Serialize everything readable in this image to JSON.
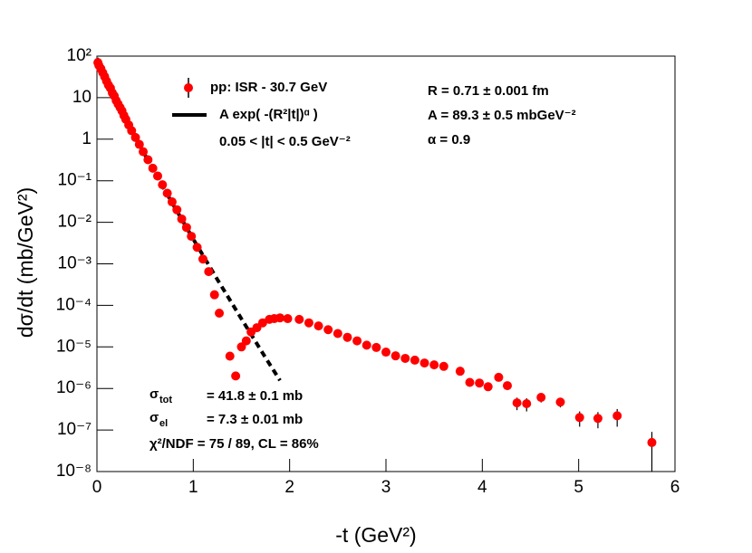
{
  "chart_data": {
    "type": "scatter",
    "xlabel": "-t (GeV²)",
    "ylabel": "dσ/dt (mb/GeV²)",
    "xlim": [
      0,
      6
    ],
    "xticks": [
      0,
      1,
      2,
      3,
      4,
      5,
      6
    ],
    "ylim": [
      1e-08,
      100
    ],
    "yscale": "log",
    "yticks": [
      {
        "value": 1e-08,
        "label": "10⁻⁸"
      },
      {
        "value": 1e-07,
        "label": "10⁻⁷"
      },
      {
        "value": 1e-06,
        "label": "10⁻⁶"
      },
      {
        "value": 1e-05,
        "label": "10⁻⁵"
      },
      {
        "value": 0.0001,
        "label": "10⁻⁴"
      },
      {
        "value": 0.001,
        "label": "10⁻³"
      },
      {
        "value": 0.01,
        "label": "10⁻²"
      },
      {
        "value": 0.1,
        "label": "10⁻¹"
      },
      1,
      10,
      {
        "value": 100,
        "label": "10²"
      }
    ],
    "series": [
      {
        "name": "pp: ISR - 30.7 GeV",
        "color": "#ff0000",
        "x": [
          0.01,
          0.02,
          0.04,
          0.06,
          0.08,
          0.1,
          0.12,
          0.14,
          0.16,
          0.18,
          0.2,
          0.22,
          0.24,
          0.26,
          0.28,
          0.3,
          0.33,
          0.36,
          0.4,
          0.44,
          0.48,
          0.53,
          0.58,
          0.63,
          0.68,
          0.73,
          0.78,
          0.83,
          0.88,
          0.93,
          0.98,
          1.04,
          1.1,
          1.16,
          1.22,
          1.27,
          1.38,
          1.44,
          1.5,
          1.55,
          1.6,
          1.66,
          1.72,
          1.79,
          1.84,
          1.9,
          1.98,
          2.1,
          2.2,
          2.3,
          2.4,
          2.5,
          2.6,
          2.7,
          2.8,
          2.9,
          3.0,
          3.1,
          3.2,
          3.3,
          3.4,
          3.5,
          3.6,
          3.77,
          3.87,
          3.97,
          4.06,
          4.17,
          4.26,
          4.36,
          4.46,
          4.61,
          4.81,
          5.01,
          5.2,
          5.4,
          5.76
        ],
        "values": [
          70,
          60,
          50,
          40,
          32,
          25,
          20,
          17,
          13,
          11,
          8.5,
          7,
          5.8,
          4.8,
          3.7,
          3.0,
          2.2,
          1.6,
          1.1,
          0.75,
          0.5,
          0.32,
          0.2,
          0.13,
          0.08,
          0.05,
          0.031,
          0.02,
          0.012,
          0.0075,
          0.0046,
          0.0025,
          0.0013,
          0.00065,
          0.00018,
          6.5e-05,
          6e-06,
          2e-06,
          1e-05,
          1.4e-05,
          2.3e-05,
          2.9e-05,
          3.8e-05,
          4.6e-05,
          4.8e-05,
          5e-05,
          4.8e-05,
          4.6e-05,
          3.8e-05,
          3.2e-05,
          2.6e-05,
          2.1e-05,
          1.7e-05,
          1.4e-05,
          1.1e-05,
          9.7e-06,
          7.5e-06,
          6.1e-06,
          5.3e-06,
          4.8e-06,
          4.1e-06,
          3.7e-06,
          3.4e-06,
          2.6e-06,
          1.4e-06,
          1.35e-06,
          1.1e-06,
          1.85e-06,
          1.17e-06,
          4.5e-07,
          4.3e-07,
          6.1e-07,
          4.7e-07,
          2e-07,
          1.9e-07,
          2.2e-07,
          5e-08
        ],
        "errors": [
          2,
          2,
          1.5,
          1.2,
          1,
          0.8,
          0.6,
          0.5,
          0.4,
          0.3,
          0.25,
          0.2,
          0.17,
          0.14,
          0.11,
          0.09,
          0.07,
          0.05,
          0.03,
          0.02,
          0.015,
          0.01,
          0.006,
          0.004,
          0.0024,
          0.0015,
          0.0009,
          0.0006,
          0.0004,
          0.0002,
          0.00014,
          8e-05,
          4e-05,
          2e-05,
          6e-06,
          2e-06,
          4e-07,
          3e-07,
          6e-07,
          8e-07,
          1.2e-06,
          1.5e-06,
          1.9e-06,
          2.3e-06,
          2.4e-06,
          2.5e-06,
          2.4e-06,
          2.3e-06,
          1.9e-06,
          1.6e-06,
          1.3e-06,
          1.1e-06,
          9e-07,
          7e-07,
          6e-07,
          5e-07,
          4e-07,
          3.5e-07,
          3e-07,
          3e-07,
          2.5e-07,
          2.5e-07,
          2.5e-07,
          2e-07,
          1.5e-07,
          1.5e-07,
          1.5e-07,
          2e-07,
          1.8e-07,
          1.5e-07,
          1.5e-07,
          1.5e-07,
          1.2e-07,
          8e-08,
          8e-08,
          1e-07,
          4e-08
        ]
      }
    ],
    "fit": {
      "name": "A exp( -(R²|t|)ᵅ )",
      "color": "#000000",
      "x": [
        0,
        0.1,
        0.2,
        0.3,
        0.4,
        0.5
      ],
      "values": [
        89.3,
        25.3,
        8.46,
        3.0,
        1.1,
        0.413
      ],
      "extrapolation": {
        "x": [
          0.5,
          0.75,
          1.0,
          1.25,
          1.5,
          1.75,
          1.9
        ],
        "values": [
          0.413,
          0.0389,
          0.00393,
          0.000419,
          4.74e-05,
          5.5e-06,
          1.56e-06
        ],
        "dashed": true
      }
    },
    "range_note": "0.05 < |t| < 0.5 GeV⁻²",
    "parameters": [
      "R = 0.71  ± 0.001 fm",
      "A = 89.3  ± 0.5 mbGeV⁻²",
      "α  = 0.9"
    ],
    "cross_sections": [
      {
        "symbol": "σ",
        "sub": "tot",
        "text": "= 41.8  ± 0.1 mb"
      },
      {
        "symbol": "σ",
        "sub": "el",
        "text": "= 7.3  ± 0.01 mb"
      }
    ],
    "fit_quality": "χ²/NDF =  75 / 89,  CL = 86%"
  }
}
